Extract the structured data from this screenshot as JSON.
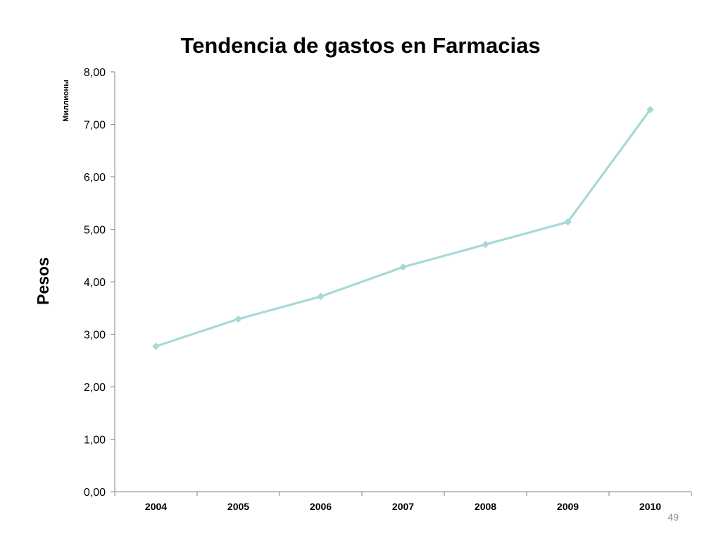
{
  "page_number": "49",
  "chart_data": {
    "type": "line",
    "title": "Tendencia de gastos en Farmacias",
    "ylabel": "Pesos",
    "yunit": "Миллионы",
    "xlabel": "",
    "categories": [
      "2004",
      "2005",
      "2006",
      "2007",
      "2008",
      "2009",
      "2010"
    ],
    "series": [
      {
        "values": [
          2.77,
          3.29,
          3.72,
          4.28,
          4.71,
          5.14,
          7.28
        ],
        "color": "#a8d8d8",
        "marker": "diamond"
      }
    ],
    "ylim": [
      0,
      8
    ],
    "yticks": [
      "0,00",
      "1,00",
      "2,00",
      "3,00",
      "4,00",
      "5,00",
      "6,00",
      "7,00",
      "8,00"
    ],
    "grid": false,
    "legend": "none"
  }
}
